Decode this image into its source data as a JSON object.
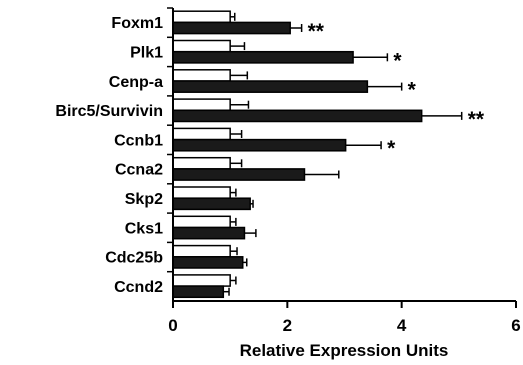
{
  "chart_data": {
    "type": "bar",
    "orientation": "horizontal",
    "xlabel": "Relative Expression Units",
    "ylabel": "",
    "xlim": [
      0,
      6
    ],
    "xticks": [
      "0",
      "2",
      "4",
      "6"
    ],
    "categories": [
      "Foxm1",
      "Plk1",
      "Cenp-a",
      "Birc5/Survivin",
      "Ccnb1",
      "Ccna2",
      "Skp2",
      "Cks1",
      "Cdc25b",
      "Ccnd2"
    ],
    "series": [
      {
        "fill": "#ffffff",
        "values": [
          1.0,
          1.0,
          1.0,
          1.0,
          1.0,
          1.0,
          1.0,
          1.0,
          1.0,
          1.0
        ],
        "errors": [
          0.08,
          0.25,
          0.3,
          0.32,
          0.2,
          0.2,
          0.1,
          0.1,
          0.12,
          0.1
        ]
      },
      {
        "fill": "#1a1a1a",
        "values": [
          2.05,
          3.15,
          3.4,
          4.35,
          3.02,
          2.3,
          1.35,
          1.25,
          1.22,
          0.88
        ],
        "errors": [
          0.2,
          0.6,
          0.6,
          0.7,
          0.62,
          0.6,
          0.05,
          0.2,
          0.07,
          0.1
        ],
        "significance": [
          "**",
          "*",
          "*",
          "**",
          "*",
          "",
          "",
          "",
          "",
          ""
        ]
      }
    ]
  }
}
